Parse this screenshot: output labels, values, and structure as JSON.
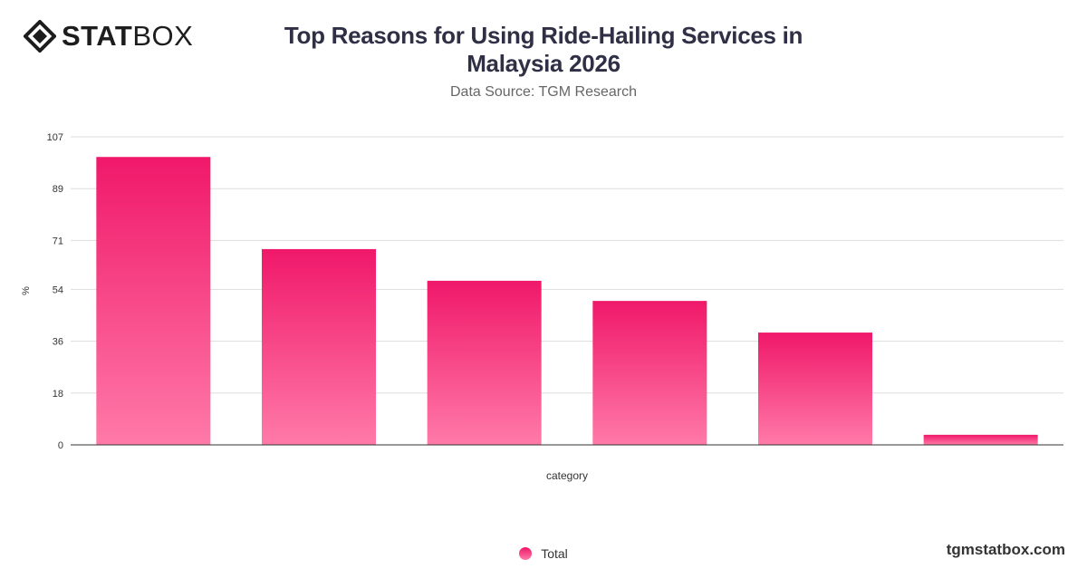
{
  "brand": {
    "logo_bold": "STAT",
    "logo_light": "BOX",
    "footer_url": "tgmstatbox.com"
  },
  "header": {
    "title_line1": "Top Reasons for Using Ride-Hailing Services in",
    "title_line2": "Malaysia 2026",
    "subtitle": "Data Source: TGM Research"
  },
  "legend": {
    "label": "Total"
  },
  "colors": {
    "bar_top": "#f0186a",
    "bar_bottom": "#ff7aa8",
    "grid": "#dddddd",
    "axis": "#333333"
  },
  "chart_data": {
    "type": "bar",
    "xlabel": "category",
    "ylabel": "%",
    "ylim": [
      0,
      107
    ],
    "yticks": [
      0,
      18,
      36,
      54,
      71,
      89,
      107
    ],
    "categories": [
      "",
      "",
      "",
      "",
      "",
      ""
    ],
    "series": [
      {
        "name": "Total",
        "values": [
          100,
          68,
          57,
          50,
          39,
          3.5
        ]
      }
    ],
    "grid": true,
    "legend_position": "bottom"
  }
}
